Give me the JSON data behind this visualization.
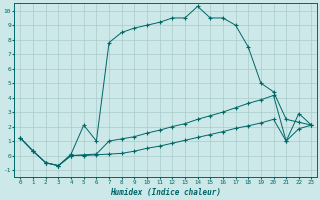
{
  "xlabel": "Humidex (Indice chaleur)",
  "bg_color": "#cce8e8",
  "grid_color": "#aacccc",
  "line_color": "#006666",
  "xlim_min": -0.5,
  "xlim_max": 23.4,
  "ylim_min": -1.5,
  "ylim_max": 10.5,
  "xticks": [
    0,
    1,
    2,
    3,
    4,
    5,
    6,
    7,
    8,
    9,
    10,
    11,
    12,
    13,
    14,
    15,
    16,
    17,
    18,
    19,
    20,
    21,
    22,
    23
  ],
  "yticks": [
    -1,
    0,
    1,
    2,
    3,
    4,
    5,
    6,
    7,
    8,
    9,
    10
  ],
  "line1_x": [
    0,
    1,
    2,
    3,
    4,
    5,
    6,
    7,
    8,
    9,
    10,
    11,
    12,
    13,
    14,
    15,
    16,
    17,
    18,
    19,
    20,
    21,
    22,
    23
  ],
  "line1_y": [
    1.2,
    0.3,
    -0.5,
    -0.7,
    0.1,
    2.1,
    1.0,
    7.8,
    8.5,
    8.8,
    9.0,
    9.2,
    9.5,
    9.5,
    10.3,
    9.5,
    9.5,
    9.0,
    7.5,
    5.0,
    4.4,
    2.5,
    2.3,
    2.1
  ],
  "line2_x": [
    0,
    1,
    2,
    3,
    4,
    5,
    6,
    7,
    8,
    9,
    10,
    11,
    12,
    13,
    14,
    15,
    16,
    17,
    18,
    19,
    20,
    21,
    22,
    23
  ],
  "line2_y": [
    1.2,
    0.3,
    -0.5,
    -0.7,
    0.0,
    0.05,
    0.1,
    1.0,
    1.15,
    1.3,
    1.55,
    1.75,
    2.0,
    2.2,
    2.5,
    2.75,
    3.0,
    3.3,
    3.6,
    3.85,
    4.15,
    1.0,
    2.9,
    2.1
  ],
  "line3_x": [
    0,
    1,
    2,
    3,
    4,
    5,
    6,
    7,
    8,
    9,
    10,
    11,
    12,
    13,
    14,
    15,
    16,
    17,
    18,
    19,
    20,
    21,
    22,
    23
  ],
  "line3_y": [
    1.2,
    0.3,
    -0.5,
    -0.7,
    0.0,
    0.0,
    0.05,
    0.1,
    0.15,
    0.3,
    0.5,
    0.65,
    0.85,
    1.05,
    1.25,
    1.45,
    1.65,
    1.88,
    2.05,
    2.25,
    2.5,
    1.0,
    1.85,
    2.1
  ]
}
